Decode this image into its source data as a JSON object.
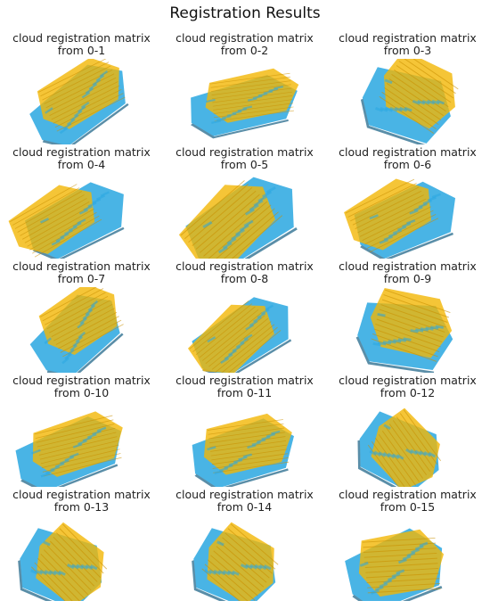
{
  "figure": {
    "title": "Registration Results"
  },
  "panels": [
    {
      "title_line1": "cloud registration matrix",
      "title_line2": "from 0-1"
    },
    {
      "title_line1": "cloud registration matrix",
      "title_line2": "from 0-2"
    },
    {
      "title_line1": "cloud registration matrix",
      "title_line2": "from 0-3"
    },
    {
      "title_line1": "cloud registration matrix",
      "title_line2": "from 0-4"
    },
    {
      "title_line1": "cloud registration matrix",
      "title_line2": "from 0-5"
    },
    {
      "title_line1": "cloud registration matrix",
      "title_line2": "from 0-6"
    },
    {
      "title_line1": "cloud registration matrix",
      "title_line2": "from 0-7"
    },
    {
      "title_line1": "cloud registration matrix",
      "title_line2": "from 0-8"
    },
    {
      "title_line1": "cloud registration matrix",
      "title_line2": "from 0-9"
    },
    {
      "title_line1": "cloud registration matrix",
      "title_line2": "from 0-10"
    },
    {
      "title_line1": "cloud registration matrix",
      "title_line2": "from 0-11"
    },
    {
      "title_line1": "cloud registration matrix",
      "title_line2": "from 0-12"
    },
    {
      "title_line1": "cloud registration matrix",
      "title_line2": "from 0-13"
    },
    {
      "title_line1": "cloud registration matrix",
      "title_line2": "from 0-14"
    },
    {
      "title_line1": "cloud registration matrix",
      "title_line2": "from 0-15"
    }
  ],
  "colors": {
    "source_cloud": "#f2b705",
    "target_cloud": "#29a7e1",
    "outline": "#5a8ea8"
  }
}
